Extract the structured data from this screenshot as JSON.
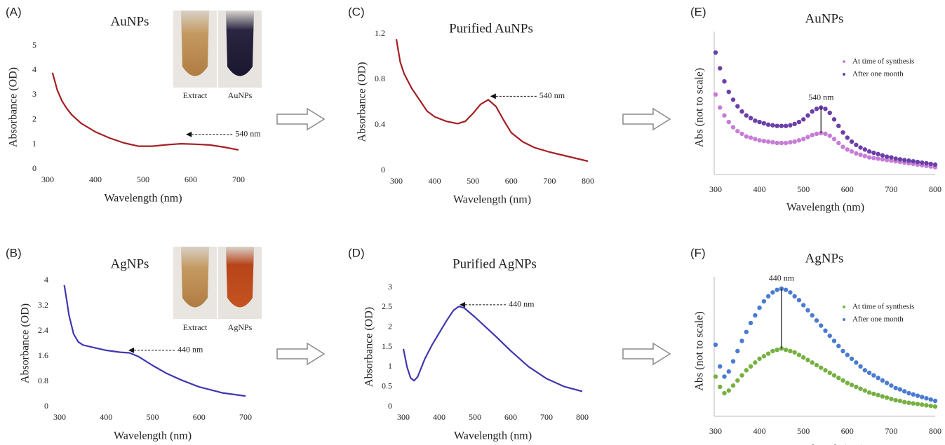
{
  "chart_data": [
    {
      "panel": "(A)",
      "type": "line",
      "title": "AuNPs",
      "x_label": "Wavelength  (nm)",
      "y_label": "Absorbance  (OD)",
      "xlim": [
        300,
        700
      ],
      "xticks": [
        300,
        400,
        500,
        600,
        700
      ],
      "ylim": [
        0,
        5
      ],
      "yticks": [
        0,
        1,
        2,
        3,
        4,
        5
      ],
      "color": "#a31f24",
      "x": [
        310,
        320,
        330,
        340,
        350,
        370,
        400,
        430,
        460,
        490,
        520,
        550,
        580,
        610,
        640,
        670,
        700
      ],
      "values": [
        3.9,
        3.2,
        2.75,
        2.45,
        2.2,
        1.85,
        1.5,
        1.25,
        1.05,
        0.92,
        0.92,
        0.98,
        1.02,
        1.0,
        0.97,
        0.88,
        0.77
      ],
      "annotations": [
        {
          "text": "540 nm",
          "x": 590,
          "y": 1.4
        }
      ],
      "inset_labels": [
        "Extract",
        "AuNPs"
      ]
    },
    {
      "panel": "(B)",
      "type": "line",
      "title": "AgNPs",
      "x_label": "Wavelength  (nm)",
      "y_label": "Absorbance  (OD)",
      "xlim": [
        300,
        700
      ],
      "xticks": [
        300,
        400,
        500,
        600,
        700
      ],
      "ylim": [
        0,
        4
      ],
      "yticks": [
        0,
        0.8,
        1.6,
        2.4,
        3.2,
        4
      ],
      "color": "#3f37b0",
      "x": [
        310,
        315,
        320,
        330,
        340,
        350,
        370,
        400,
        430,
        450,
        470,
        500,
        530,
        560,
        600,
        650,
        700
      ],
      "values": [
        3.85,
        3.4,
        2.9,
        2.3,
        2.05,
        1.95,
        1.88,
        1.78,
        1.72,
        1.7,
        1.58,
        1.3,
        1.05,
        0.85,
        0.62,
        0.43,
        0.33
      ],
      "annotations": [
        {
          "text": "440 nm",
          "x": 448,
          "y": 1.78
        }
      ],
      "inset_labels": [
        "Extract",
        "AgNPs"
      ]
    },
    {
      "panel": "(C)",
      "type": "line",
      "title": "Purified AuNPs",
      "x_label": "Wavelength  (nm)",
      "y_label": "Absorbance  (OD)",
      "xlim": [
        300,
        800
      ],
      "xticks": [
        300,
        400,
        500,
        600,
        700,
        800
      ],
      "ylim": [
        0,
        1.2
      ],
      "yticks": [
        0,
        0.4,
        0.8,
        1.2
      ],
      "color": "#a31f24",
      "x": [
        300,
        310,
        320,
        340,
        360,
        380,
        400,
        430,
        460,
        480,
        500,
        520,
        540,
        560,
        580,
        600,
        630,
        660,
        700,
        750,
        800
      ],
      "values": [
        1.15,
        0.95,
        0.85,
        0.72,
        0.62,
        0.52,
        0.47,
        0.43,
        0.41,
        0.43,
        0.5,
        0.58,
        0.62,
        0.56,
        0.44,
        0.33,
        0.25,
        0.2,
        0.16,
        0.12,
        0.08
      ],
      "annotations": [
        {
          "text": "540 nm",
          "x": 545,
          "y": 0.65
        }
      ]
    },
    {
      "panel": "(D)",
      "type": "line",
      "title": "Purified AgNPs",
      "x_label": "Wavelength  (nm)",
      "y_label": "Absorbance  (OD)",
      "xlim": [
        300,
        800
      ],
      "xticks": [
        300,
        400,
        500,
        600,
        700,
        800
      ],
      "ylim": [
        0,
        3
      ],
      "yticks": [
        0,
        0.5,
        1,
        1.5,
        2,
        2.5,
        3
      ],
      "color": "#3f37b0",
      "x": [
        300,
        310,
        320,
        330,
        340,
        360,
        380,
        400,
        420,
        440,
        455,
        470,
        500,
        530,
        560,
        600,
        650,
        700,
        750,
        800
      ],
      "values": [
        1.45,
        1.0,
        0.72,
        0.65,
        0.75,
        1.2,
        1.55,
        1.85,
        2.15,
        2.42,
        2.52,
        2.48,
        2.25,
        2.0,
        1.75,
        1.4,
        1.0,
        0.7,
        0.5,
        0.38
      ],
      "annotations": [
        {
          "text": "440 nm",
          "x": 457,
          "y": 2.56
        }
      ]
    },
    {
      "panel": "(E)",
      "type": "scatter",
      "title": "AuNPs",
      "x_label": "Wavelength  (nm)",
      "y_label": "Abs  (not to scale)",
      "xlim": [
        300,
        800
      ],
      "xticks": [
        300,
        400,
        500,
        600,
        700,
        800
      ],
      "ylim": [
        0,
        1
      ],
      "axis_lines": true,
      "legend": "upper right",
      "x": [
        300,
        310,
        320,
        330,
        340,
        350,
        360,
        370,
        380,
        390,
        400,
        410,
        420,
        430,
        440,
        450,
        460,
        470,
        480,
        490,
        500,
        510,
        520,
        530,
        540,
        550,
        560,
        570,
        580,
        590,
        600,
        610,
        620,
        630,
        640,
        650,
        660,
        670,
        680,
        690,
        700,
        710,
        720,
        730,
        740,
        750,
        760,
        770,
        780,
        790,
        800
      ],
      "series": [
        {
          "name": "At time of synthesis",
          "color": "#c77dd6",
          "values": [
            0.6,
            0.5,
            0.44,
            0.39,
            0.35,
            0.32,
            0.3,
            0.28,
            0.27,
            0.26,
            0.25,
            0.245,
            0.24,
            0.235,
            0.23,
            0.23,
            0.23,
            0.235,
            0.24,
            0.25,
            0.26,
            0.275,
            0.29,
            0.3,
            0.305,
            0.3,
            0.285,
            0.26,
            0.23,
            0.2,
            0.18,
            0.165,
            0.15,
            0.14,
            0.13,
            0.12,
            0.115,
            0.11,
            0.105,
            0.1,
            0.095,
            0.09,
            0.085,
            0.08,
            0.075,
            0.07,
            0.065,
            0.06,
            0.055,
            0.05,
            0.045
          ]
        },
        {
          "name": "After one month",
          "color": "#6b3fa8",
          "values": [
            0.92,
            0.8,
            0.7,
            0.62,
            0.56,
            0.51,
            0.47,
            0.44,
            0.42,
            0.4,
            0.39,
            0.38,
            0.37,
            0.365,
            0.36,
            0.36,
            0.36,
            0.365,
            0.375,
            0.39,
            0.41,
            0.44,
            0.47,
            0.49,
            0.5,
            0.49,
            0.46,
            0.41,
            0.36,
            0.31,
            0.27,
            0.24,
            0.215,
            0.195,
            0.18,
            0.165,
            0.155,
            0.145,
            0.135,
            0.125,
            0.12,
            0.11,
            0.105,
            0.1,
            0.095,
            0.09,
            0.085,
            0.08,
            0.075,
            0.07,
            0.065
          ]
        }
      ],
      "annotations": [
        {
          "text": "540 nm",
          "x": 540
        }
      ]
    },
    {
      "panel": "(F)",
      "type": "scatter",
      "title": "AgNPs",
      "x_label": "Wavelength  (nm)",
      "y_label": "Abs  (not to scale)",
      "xlim": [
        300,
        800
      ],
      "xticks": [
        300,
        400,
        500,
        600,
        700,
        800
      ],
      "ylim": [
        0,
        1
      ],
      "axis_lines": true,
      "legend": "upper right",
      "x": [
        300,
        310,
        320,
        330,
        340,
        350,
        360,
        370,
        380,
        390,
        400,
        410,
        420,
        430,
        440,
        450,
        460,
        470,
        480,
        490,
        500,
        510,
        520,
        530,
        540,
        550,
        560,
        570,
        580,
        590,
        600,
        610,
        620,
        630,
        640,
        650,
        660,
        670,
        680,
        690,
        700,
        710,
        720,
        730,
        740,
        750,
        760,
        770,
        780,
        790,
        800
      ],
      "series": [
        {
          "name": "At time of synthesis",
          "color": "#76b041",
          "values": [
            0.3,
            0.22,
            0.17,
            0.19,
            0.23,
            0.27,
            0.31,
            0.35,
            0.38,
            0.41,
            0.44,
            0.46,
            0.48,
            0.5,
            0.51,
            0.52,
            0.51,
            0.5,
            0.49,
            0.47,
            0.45,
            0.43,
            0.41,
            0.39,
            0.37,
            0.35,
            0.33,
            0.31,
            0.29,
            0.27,
            0.25,
            0.235,
            0.22,
            0.205,
            0.19,
            0.175,
            0.165,
            0.155,
            0.145,
            0.135,
            0.125,
            0.115,
            0.11,
            0.1,
            0.095,
            0.09,
            0.085,
            0.08,
            0.075,
            0.07,
            0.065
          ]
        },
        {
          "name": "After one month",
          "color": "#4a7bd0",
          "values": [
            0.55,
            0.38,
            0.3,
            0.34,
            0.42,
            0.5,
            0.58,
            0.65,
            0.72,
            0.78,
            0.84,
            0.89,
            0.93,
            0.96,
            0.98,
            0.99,
            0.98,
            0.96,
            0.93,
            0.9,
            0.86,
            0.82,
            0.78,
            0.74,
            0.7,
            0.66,
            0.62,
            0.58,
            0.54,
            0.5,
            0.47,
            0.44,
            0.41,
            0.38,
            0.35,
            0.33,
            0.31,
            0.29,
            0.27,
            0.25,
            0.23,
            0.21,
            0.2,
            0.185,
            0.17,
            0.16,
            0.15,
            0.14,
            0.13,
            0.12,
            0.11
          ]
        }
      ],
      "annotations": [
        {
          "text": "440 nm",
          "x": 450
        }
      ]
    }
  ]
}
